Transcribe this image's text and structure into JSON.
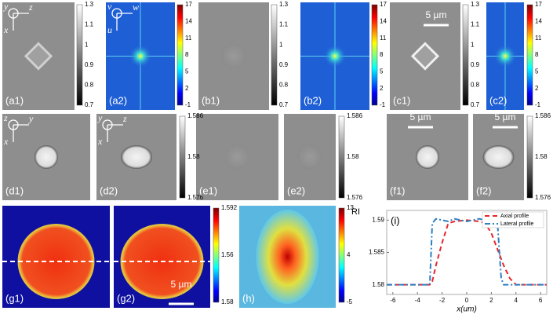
{
  "panels": {
    "a1": "(a1)",
    "a2": "(a2)",
    "b1": "(b1)",
    "b2": "(b2)",
    "c1": "(c1)",
    "c2": "(c2)",
    "d1": "(d1)",
    "d2": "(d2)",
    "e1": "(e1)",
    "e2": "(e2)",
    "f1": "(f1)",
    "f2": "(f2)",
    "g1": "(g1)",
    "g2": "(g2)",
    "h": "(h)",
    "i": "(i)"
  },
  "axis_glyphs": {
    "a1": [
      "y",
      "z",
      "x"
    ],
    "a2": [
      "v",
      "w",
      "u"
    ],
    "d1": [
      "z",
      "y",
      "x"
    ],
    "d2": [
      "y",
      "z",
      "x"
    ]
  },
  "colorbars": {
    "gray_a": [
      "1.3",
      "1.1",
      "1",
      "0.9",
      "0.8",
      "0.7"
    ],
    "jet_a": [
      "17",
      "14",
      "11",
      "8",
      "5",
      "2",
      "-1"
    ],
    "gray_d": [
      "1.586",
      "1.58",
      "1.576"
    ],
    "jet_g": [
      "1.592",
      "1.56",
      "1.58"
    ],
    "jet_h": [
      "13",
      "4",
      "-5"
    ]
  },
  "scale_bar": "5 µm",
  "ri_label": "RI",
  "chart_data": {
    "type": "line",
    "xlabel": "x(um)",
    "x": [
      -6.5,
      -4,
      -3,
      -2.8,
      -2.5,
      -2,
      -1.5,
      -1,
      0,
      1,
      1.5,
      2,
      2.5,
      2.8,
      3,
      3.5,
      4,
      6.5
    ],
    "series": [
      {
        "name": "Axial profile",
        "color": "#e8262b",
        "dash": "6,4",
        "values": [
          1.58,
          1.58,
          1.58,
          1.5805,
          1.583,
          1.5865,
          1.5895,
          1.5898,
          1.59,
          1.5898,
          1.5895,
          1.588,
          1.5855,
          1.584,
          1.583,
          1.581,
          1.58,
          1.58
        ]
      },
      {
        "name": "Lateral profile",
        "color": "#2f7fc1",
        "dash": "7,3,2,3",
        "values": [
          1.58,
          1.58,
          1.58,
          1.5895,
          1.5902,
          1.59,
          1.5898,
          1.5902,
          1.5898,
          1.5902,
          1.59,
          1.59,
          1.5895,
          1.581,
          1.58,
          1.58,
          1.58,
          1.58
        ]
      }
    ],
    "xlim": [
      -6.5,
      6.5
    ],
    "ylim": [
      1.5785,
      1.5915
    ],
    "xticks": [
      -6,
      -4,
      -2,
      0,
      2,
      4,
      6
    ],
    "yticks": [
      1.58,
      1.585,
      1.59
    ],
    "legend": "upper right"
  }
}
